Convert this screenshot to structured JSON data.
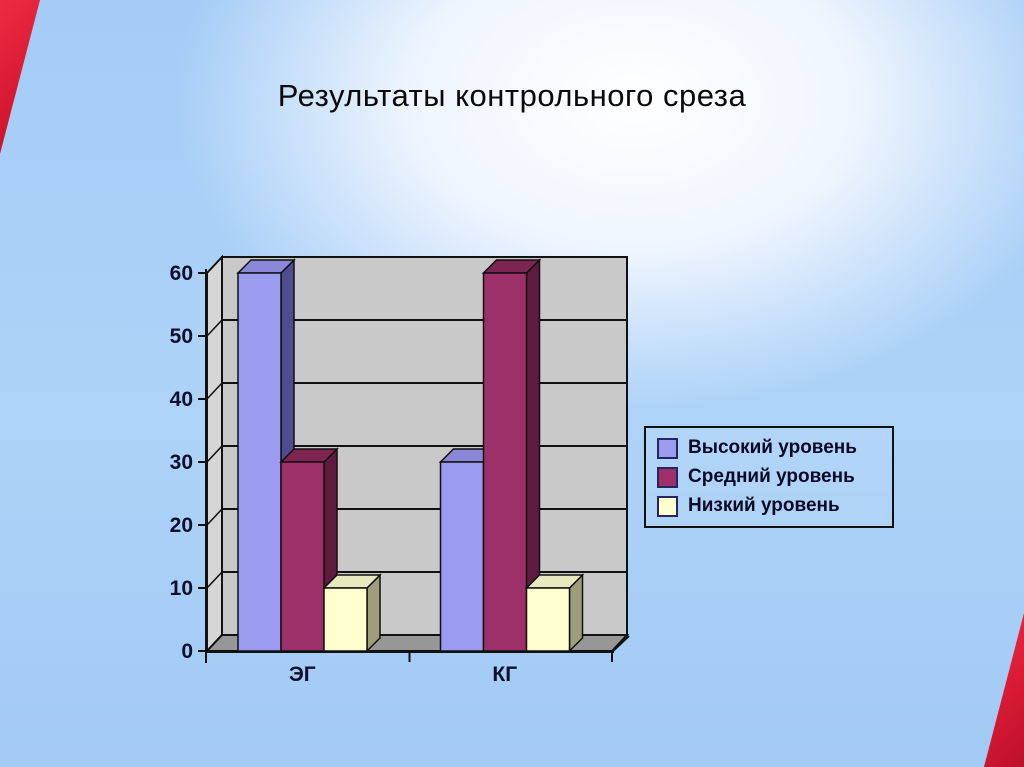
{
  "slide": {
    "title": "Результаты контрольного среза",
    "background_glow_color": "#ffffff",
    "background_blue_color": "#a7cef6",
    "corner_accent_color": "#d81a34"
  },
  "chart_data": {
    "type": "bar",
    "projection": "3d",
    "title": "",
    "categories": [
      "ЭГ",
      "КГ"
    ],
    "series": [
      {
        "name": "Высокий уровень",
        "color": "#9b9bef",
        "top_color": "#8a87d8",
        "side_color": "#4f4c92",
        "values": [
          60,
          30
        ]
      },
      {
        "name": "Средний уровень",
        "color": "#9e3069",
        "top_color": "#7d2451",
        "side_color": "#5e1b3f",
        "values": [
          30,
          60
        ]
      },
      {
        "name": "Низкий уровень",
        "color": "#ffffcf",
        "top_color": "#e9e9c0",
        "side_color": "#9e9e7a",
        "values": [
          10,
          10
        ]
      }
    ],
    "ylim": [
      0,
      60
    ],
    "yticks": [
      0,
      10,
      20,
      30,
      40,
      50,
      60
    ],
    "grid": true,
    "legend_position": "right",
    "wall_color": "#c9c9c9",
    "side_wall_color": "#d6d6d6",
    "floor_color": "#979797",
    "axis_color": "#111111",
    "label_color": "#10102e"
  }
}
